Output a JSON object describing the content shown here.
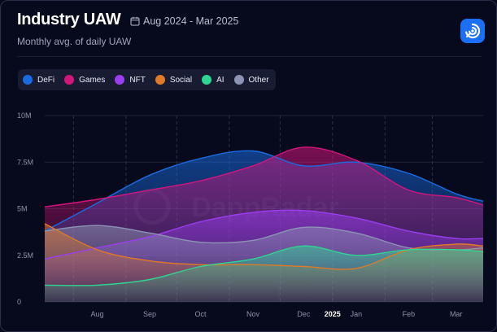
{
  "header": {
    "title": "Industry UAW",
    "date_range": "Aug 2024 - Mar 2025",
    "subtitle": "Monthly avg. of daily UAW"
  },
  "logo": {
    "icon": "dappradar-logo-icon",
    "watermark": "DappRadar"
  },
  "legend": [
    {
      "label": "DeFi",
      "color": "#1a6be0"
    },
    {
      "label": "Games",
      "color": "#d4157c"
    },
    {
      "label": "NFT",
      "color": "#9b3df0"
    },
    {
      "label": "Social",
      "color": "#e07a26"
    },
    {
      "label": "AI",
      "color": "#2ed694"
    },
    {
      "label": "Other",
      "color": "#8c93b3"
    }
  ],
  "chart_data": {
    "type": "area",
    "x": [
      "2024-07-15",
      "2024-08-15",
      "2024-09-15",
      "2024-10-15",
      "2024-11-15",
      "2024-12-15",
      "2025-01-15",
      "2025-02-15",
      "2025-03-15",
      "2025-03-31"
    ],
    "x_tick_labels": [
      "Aug",
      "Sep",
      "Oct",
      "Nov",
      "Dec",
      "2025",
      "Jan",
      "Feb",
      "Mar"
    ],
    "y_tick_labels": [
      "10M",
      "7.5M",
      "5M",
      "2.5M",
      "0"
    ],
    "ylim": [
      0,
      10000000
    ],
    "grid": true,
    "legend_position": "top-left",
    "series": [
      {
        "name": "DeFi",
        "color": "#1a6be0",
        "values": [
          3800000,
          5300000,
          6800000,
          7700000,
          8100000,
          7300000,
          7500000,
          6900000,
          5800000,
          5400000
        ]
      },
      {
        "name": "Games",
        "color": "#d4157c",
        "values": [
          5100000,
          5500000,
          6000000,
          6500000,
          7300000,
          8300000,
          7600000,
          6000000,
          5600000,
          5200000
        ]
      },
      {
        "name": "NFT",
        "color": "#9b3df0",
        "values": [
          2300000,
          2900000,
          3500000,
          4300000,
          4800000,
          4900000,
          4500000,
          3800000,
          3400000,
          3400000
        ]
      },
      {
        "name": "Social",
        "color": "#e07a26",
        "values": [
          4200000,
          2800000,
          2200000,
          2000000,
          2000000,
          1900000,
          1800000,
          2800000,
          3100000,
          3000000
        ]
      },
      {
        "name": "AI",
        "color": "#2ed694",
        "values": [
          900000,
          900000,
          1200000,
          1900000,
          2300000,
          3000000,
          2500000,
          2800000,
          2800000,
          2700000
        ]
      },
      {
        "name": "Other",
        "color": "#8c93b3",
        "values": [
          3800000,
          4100000,
          3700000,
          3200000,
          3300000,
          4000000,
          3700000,
          2900000,
          2800000,
          2900000
        ]
      }
    ]
  }
}
